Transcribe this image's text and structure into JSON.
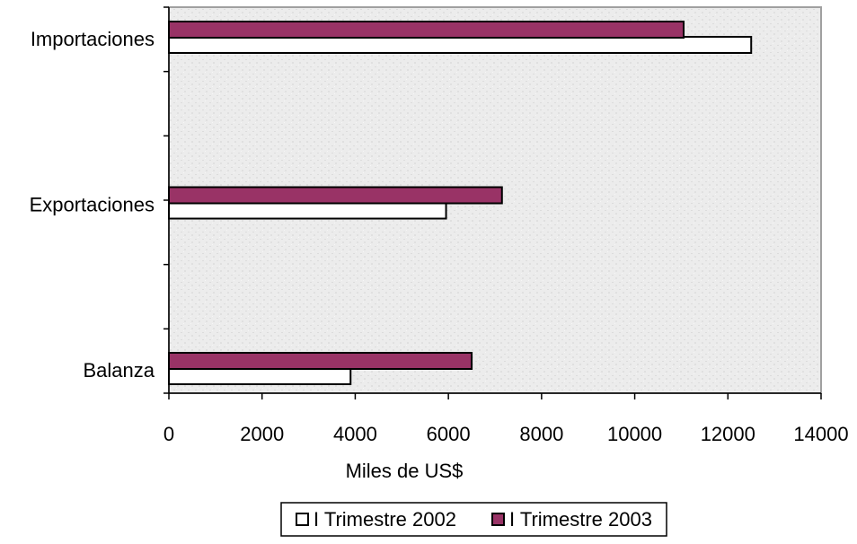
{
  "chart_data": {
    "type": "barh",
    "categories": [
      "Importaciones",
      "Exportaciones",
      "Balanza"
    ],
    "series": [
      {
        "name": "I Trimestre 2002",
        "color": "#ffffff",
        "values": [
          12500,
          5950,
          3900
        ]
      },
      {
        "name": "I Trimestre 2003",
        "color": "#993366",
        "values": [
          11050,
          7150,
          6500
        ]
      }
    ],
    "x_label": "Miles de US$",
    "xlim": [
      0,
      14000
    ],
    "xticks": [
      0,
      2000,
      4000,
      6000,
      8000,
      10000,
      12000,
      14000
    ],
    "legend": "bottom"
  }
}
